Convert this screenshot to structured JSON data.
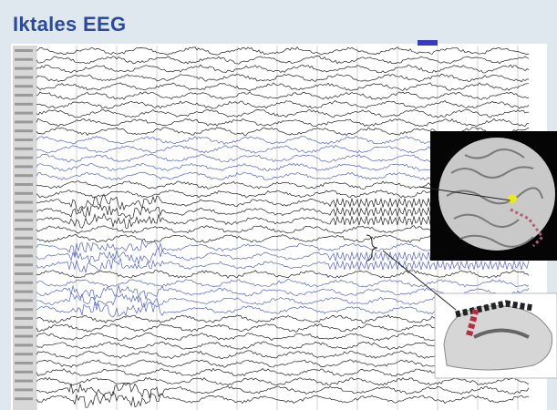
{
  "header": {
    "title": "Iktales EEG"
  }
}
